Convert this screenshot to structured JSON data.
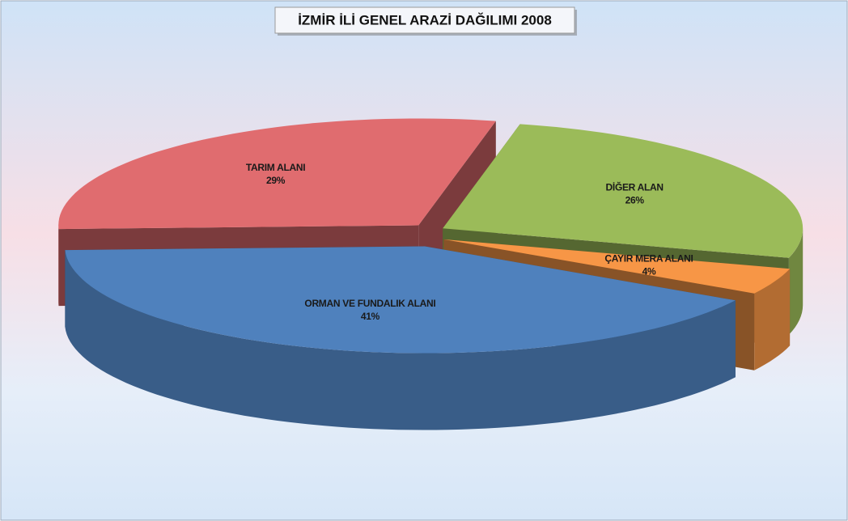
{
  "chart_data": {
    "type": "pie",
    "title": "İZMİR İLİ GENEL ARAZİ DAĞILIMI 2008",
    "categories": [
      "TARIM ALANI",
      "DİĞER ALAN",
      "ÇAYIR MERA ALANI",
      "ORMAN VE FUNDALIK ALANI"
    ],
    "values": [
      29,
      26,
      4,
      41
    ],
    "value_labels": [
      "29%",
      "26%",
      "4%",
      "41%"
    ],
    "colors": [
      "#e06c6f",
      "#9bbb59",
      "#f79646",
      "#4f81bd"
    ]
  }
}
